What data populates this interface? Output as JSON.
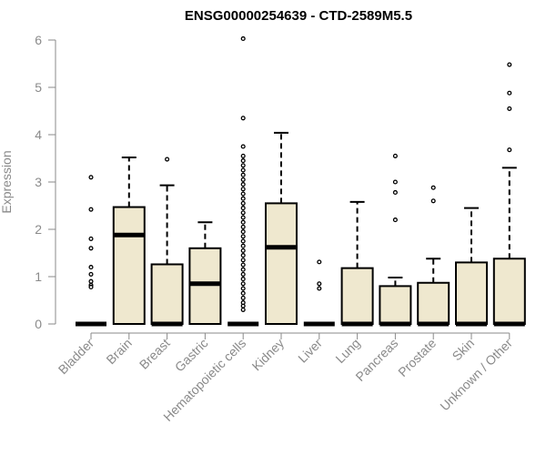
{
  "chart_data": {
    "type": "boxplot",
    "title": "ENSG00000254639 - CTD-2589M5.5",
    "ylabel": "Expression",
    "ylim": [
      0,
      6
    ],
    "yticks": [
      0,
      1,
      2,
      3,
      4,
      5,
      6
    ],
    "box_color": "#efe8cf",
    "categories": [
      "Bladder",
      "Brain",
      "Breast",
      "Gastric",
      "Hematopoietic cells",
      "Kidney",
      "Liver",
      "Lung",
      "Pancreas",
      "Prostate",
      "Skin",
      "Unknown / Other"
    ],
    "boxes": [
      {
        "category": "Bladder",
        "q1": 0,
        "median": 0,
        "q3": 0,
        "whisker_low": 0,
        "whisker_high": 0,
        "outliers": [
          3.1,
          2.42,
          1.8,
          1.6,
          1.2,
          1.05,
          0.9,
          0.82,
          0.78
        ]
      },
      {
        "category": "Brain",
        "q1": 0,
        "median": 1.88,
        "q3": 2.47,
        "whisker_low": 0,
        "whisker_high": 3.52,
        "outliers": []
      },
      {
        "category": "Breast",
        "q1": 0,
        "median": 0,
        "q3": 1.26,
        "whisker_low": 0,
        "whisker_high": 2.93,
        "outliers": [
          3.48
        ]
      },
      {
        "category": "Gastric",
        "q1": 0,
        "median": 0.85,
        "q3": 1.6,
        "whisker_low": 0,
        "whisker_high": 2.15,
        "outliers": []
      },
      {
        "category": "Hematopoietic cells",
        "q1": 0,
        "median": 0,
        "q3": 0,
        "whisker_low": 0,
        "whisker_high": 0,
        "outliers": [
          6.03,
          4.35,
          3.75,
          3.55,
          3.45,
          3.35,
          3.25,
          3.15,
          3.05,
          2.95,
          2.85,
          2.75,
          2.65,
          2.55,
          2.45,
          2.35,
          2.25,
          2.15,
          2.05,
          1.95,
          1.85,
          1.75,
          1.65,
          1.55,
          1.45,
          1.35,
          1.25,
          1.15,
          1.05,
          0.95,
          0.85,
          0.75,
          0.65,
          0.55,
          0.45,
          0.38,
          0.3
        ]
      },
      {
        "category": "Kidney",
        "q1": 0,
        "median": 1.62,
        "q3": 2.55,
        "whisker_low": 0,
        "whisker_high": 4.04,
        "outliers": []
      },
      {
        "category": "Liver",
        "q1": 0,
        "median": 0,
        "q3": 0,
        "whisker_low": 0,
        "whisker_high": 0,
        "outliers": [
          1.31,
          0.85,
          0.75
        ]
      },
      {
        "category": "Lung",
        "q1": 0,
        "median": 0,
        "q3": 1.18,
        "whisker_low": 0,
        "whisker_high": 2.58,
        "outliers": []
      },
      {
        "category": "Pancreas",
        "q1": 0,
        "median": 0,
        "q3": 0.8,
        "whisker_low": 0,
        "whisker_high": 0.98,
        "outliers": [
          3.55,
          3.0,
          2.78,
          2.2
        ]
      },
      {
        "category": "Prostate",
        "q1": 0,
        "median": 0,
        "q3": 0.87,
        "whisker_low": 0,
        "whisker_high": 1.38,
        "outliers": [
          2.88,
          2.6
        ]
      },
      {
        "category": "Skin",
        "q1": 0,
        "median": 0,
        "q3": 1.3,
        "whisker_low": 0,
        "whisker_high": 2.45,
        "outliers": []
      },
      {
        "category": "Unknown / Other",
        "q1": 0,
        "median": 0,
        "q3": 1.38,
        "whisker_low": 0,
        "whisker_high": 3.3,
        "outliers": [
          5.48,
          4.88,
          4.55,
          3.68
        ]
      }
    ]
  }
}
